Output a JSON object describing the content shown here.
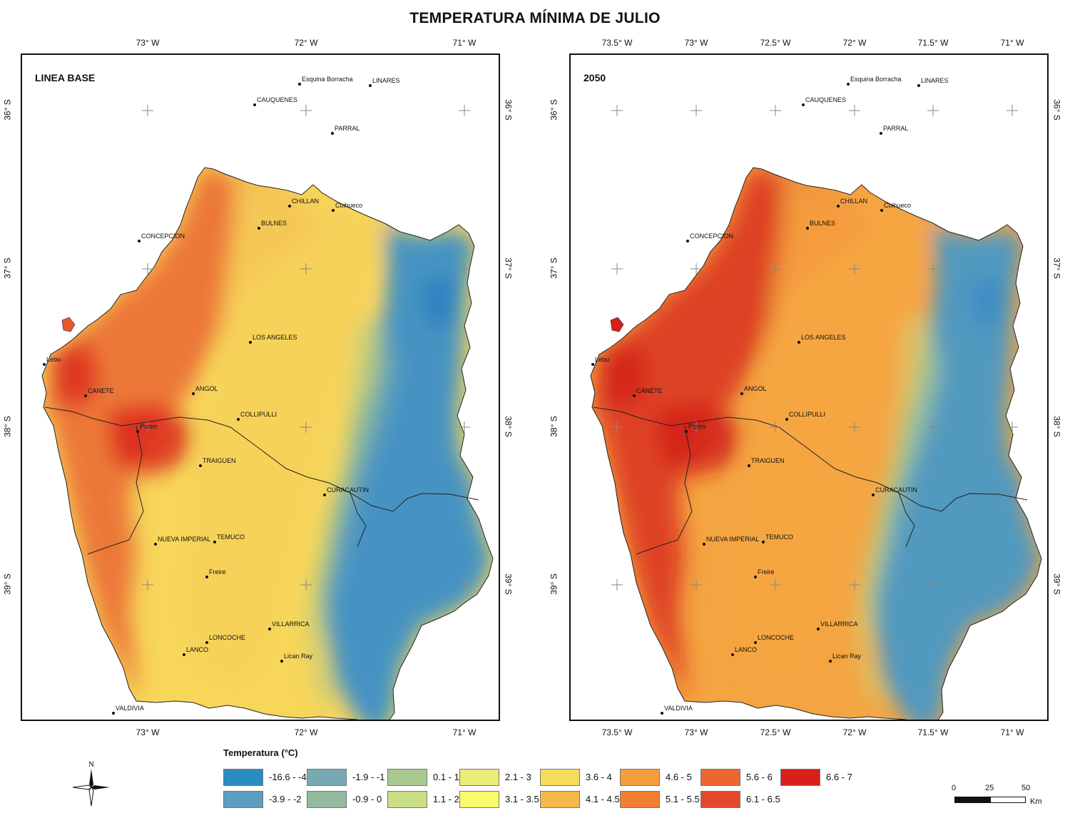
{
  "title": "TEMPERATURA MÍNIMA DE JULIO",
  "colors": {
    "ocean": "#ffffff",
    "boundary": "#222222",
    "grid_cross": "#888888",
    "coast_red_base": "#e8582f",
    "valley_yellow_base": "#f7d65a",
    "andes_blue": "#3b8fc8",
    "coast_red_2050": "#d7201b",
    "valley_orange_2050": "#f4a441"
  },
  "panels": [
    {
      "id": "base",
      "label": "LINEA BASE",
      "top_lon_labels": [
        "73° W",
        "72° W",
        "71° W"
      ],
      "bottom_lon_labels": [
        "73° W",
        "72° W",
        "71° W"
      ],
      "lat_labels": [
        "36° S",
        "37° S",
        "38° S",
        "39° S"
      ]
    },
    {
      "id": "y2050",
      "label": "2050",
      "top_lon_labels": [
        "73.5° W",
        "73° W",
        "72.5° W",
        "72° W",
        "71.5° W",
        "71° W"
      ],
      "bottom_lon_labels": [
        "73.5° W",
        "73° W",
        "72.5° W",
        "72° W",
        "71.5° W",
        "71° W"
      ],
      "lat_labels": [
        "36° S",
        "37° S",
        "38° S",
        "39° S"
      ]
    }
  ],
  "cities": [
    "Esquina Borracha",
    "LINARES",
    "CAUQUENES",
    "PARRAL",
    "CHILLAN",
    "Coihueco",
    "BULNES",
    "CONCEPCION",
    "LOS ANGELES",
    "Lebu",
    "CANETE",
    "ANGOL",
    "COLLIPULLI",
    "Puren",
    "TRAIGUEN",
    "CURACAUTIN",
    "NUEVA IMPERIAL",
    "TEMUCO",
    "Freire",
    "VILLARRICA",
    "LONCOCHE",
    "LANCO",
    "Lican Ray",
    "VALDIVIA"
  ],
  "legend": {
    "title": "Temperatura (°C)",
    "classes": [
      {
        "label": "-16.6 - -4",
        "color": "#2b8cc4"
      },
      {
        "label": "-3.9 - -2",
        "color": "#5a9fc0"
      },
      {
        "label": "-1.9 - -1",
        "color": "#78a9b3"
      },
      {
        "label": "-0.9 - 0",
        "color": "#93b99f"
      },
      {
        "label": "0.1 - 1",
        "color": "#a9c98f"
      },
      {
        "label": "1.1 - 2",
        "color": "#c9de85"
      },
      {
        "label": "2.1 - 3",
        "color": "#e9ed7c"
      },
      {
        "label": "3.1 - 3.5",
        "color": "#fafb6b"
      },
      {
        "label": "3.6 - 4",
        "color": "#f8dc5b"
      },
      {
        "label": "4.1 - 4.5",
        "color": "#f6b84a"
      },
      {
        "label": "4.6 - 5",
        "color": "#f59d3e"
      },
      {
        "label": "5.1 - 5.5",
        "color": "#f17f33"
      },
      {
        "label": "5.6 - 6",
        "color": "#ec6730"
      },
      {
        "label": "6.1 - 6.5",
        "color": "#e4482a"
      },
      {
        "label": "6.6 - 7",
        "color": "#d91f1c"
      }
    ]
  },
  "north_arrow": {
    "label": "N"
  },
  "scale_bar": {
    "labels": [
      "0",
      "25",
      "50"
    ],
    "unit": "Km"
  }
}
